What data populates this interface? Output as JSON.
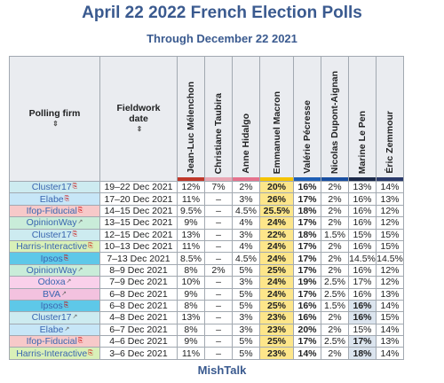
{
  "title": "April 22 2022 French Election Polls",
  "subtitle": "Through December 22 2021",
  "footer": "MishTalk",
  "headers": {
    "firm": "Polling firm",
    "date": "Fieldwork date",
    "sort_icon": "⇕",
    "candidates": [
      {
        "name": "Jean-Luc Mélenchon",
        "color": "#c0392b"
      },
      {
        "name": "Christiane Taubira",
        "color": "#e9a7b4"
      },
      {
        "name": "Anne Hidalgo",
        "color": "#e5738d"
      },
      {
        "name": "Emmanuel Macron",
        "color": "#f5c400"
      },
      {
        "name": "Valérie Pécresse",
        "color": "#1f5fb5"
      },
      {
        "name": "Nicolas Dupont-Aignan",
        "color": "#1a4fa0"
      },
      {
        "name": "Marine Le Pen",
        "color": "#1c2a4a"
      },
      {
        "name": "Éric Zemmour",
        "color": "#2a3a6a"
      }
    ]
  },
  "firm_colors": {
    "Cluster17": "#cdebf0",
    "Elabe": "#c7e6f7",
    "Ifop-Fiducial": "#f7c9c9",
    "OpinionWay": "#c9ecd9",
    "Harris-Interactive": "#d9f0b8",
    "Ipsos": "#5ec8e8",
    "Odoxa": "#f9d0ea",
    "BVA": "#f3c2df"
  },
  "rows": [
    {
      "firm": "Cluster17",
      "date": "19–22 Dec 2021",
      "link": "pdf",
      "values": [
        "12%",
        "7%",
        "2%",
        "20%",
        "16%",
        "2%",
        "13%",
        "14%"
      ],
      "lead2": -1
    },
    {
      "firm": "Elabe",
      "date": "17–20 Dec 2021",
      "link": "pdf",
      "values": [
        "11%",
        "–",
        "3%",
        "26%",
        "17%",
        "2%",
        "16%",
        "13%"
      ],
      "lead2": -1
    },
    {
      "firm": "Ifop-Fiducial",
      "date": "14–15 Dec 2021",
      "link": "pdf",
      "values": [
        "9.5%",
        "–",
        "4.5%",
        "25.5%",
        "18%",
        "2%",
        "16%",
        "12%"
      ],
      "lead2": -1
    },
    {
      "firm": "OpinionWay",
      "date": "13–15 Dec 2021",
      "link": "ext",
      "values": [
        "9%",
        "–",
        "4%",
        "24%",
        "17%",
        "2%",
        "16%",
        "12%"
      ],
      "lead2": -1
    },
    {
      "firm": "Cluster17",
      "date": "12–15 Dec 2021",
      "link": "pdf",
      "values": [
        "13%",
        "–",
        "3%",
        "22%",
        "18%",
        "1.5%",
        "15%",
        "15%"
      ],
      "lead2": -1
    },
    {
      "firm": "Harris-Interactive",
      "date": "10–13 Dec 2021",
      "link": "pdf",
      "values": [
        "11%",
        "–",
        "4%",
        "24%",
        "17%",
        "2%",
        "16%",
        "15%"
      ],
      "lead2": -1
    },
    {
      "firm": "Ipsos",
      "date": "7–13 Dec 2021",
      "link": "pdf",
      "values": [
        "8.5%",
        "–",
        "4.5%",
        "24%",
        "17%",
        "2%",
        "14.5%",
        "14.5%"
      ],
      "lead2": -1
    },
    {
      "firm": "OpinionWay",
      "date": "8–9 Dec 2021",
      "link": "ext",
      "values": [
        "8%",
        "2%",
        "5%",
        "25%",
        "17%",
        "2%",
        "16%",
        "12%"
      ],
      "lead2": -1
    },
    {
      "firm": "Odoxa",
      "date": "7–9 Dec 2021",
      "link": "ext",
      "values": [
        "10%",
        "–",
        "3%",
        "24%",
        "19%",
        "2.5%",
        "17%",
        "12%"
      ],
      "lead2": -1
    },
    {
      "firm": "BVA",
      "date": "6–8 Dec 2021",
      "link": "ext",
      "values": [
        "9%",
        "–",
        "5%",
        "24%",
        "17%",
        "2.5%",
        "16%",
        "13%"
      ],
      "lead2": -1
    },
    {
      "firm": "Ipsos",
      "date": "6–8 Dec 2021",
      "link": "pdf",
      "values": [
        "8%",
        "–",
        "5%",
        "25%",
        "16%",
        "1.5%",
        "16%",
        "14%"
      ],
      "lead2": 6
    },
    {
      "firm": "Cluster17",
      "date": "4–8 Dec 2021",
      "link": "ext",
      "values": [
        "13%",
        "–",
        "3%",
        "23%",
        "16%",
        "2%",
        "16%",
        "15%"
      ],
      "lead2": 6
    },
    {
      "firm": "Elabe",
      "date": "6–7 Dec 2021",
      "link": "ext",
      "values": [
        "8%",
        "–",
        "3%",
        "23%",
        "20%",
        "2%",
        "15%",
        "14%"
      ],
      "lead2": -1
    },
    {
      "firm": "Ifop-Fiducial",
      "date": "4–6 Dec 2021",
      "link": "pdf",
      "values": [
        "9%",
        "–",
        "5%",
        "25%",
        "17%",
        "2.5%",
        "17%",
        "13%"
      ],
      "lead2": 6
    },
    {
      "firm": "Harris-Interactive",
      "date": "3–6 Dec 2021",
      "link": "pdf",
      "values": [
        "11%",
        "–",
        "5%",
        "23%",
        "14%",
        "2%",
        "18%",
        "14%"
      ],
      "lead2": 6
    }
  ]
}
